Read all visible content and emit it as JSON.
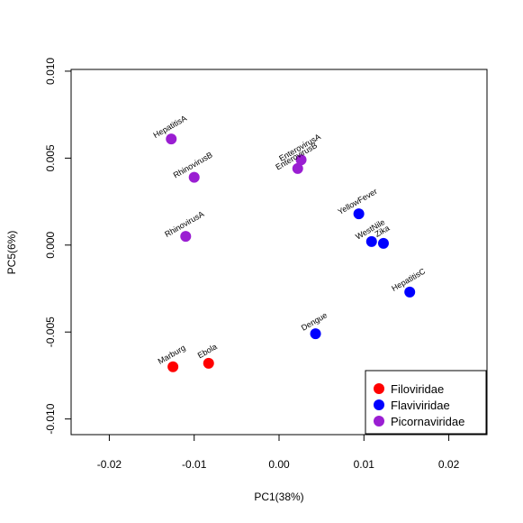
{
  "chart_data": {
    "type": "scatter",
    "xlabel": "PC1(38%)",
    "ylabel": "PC5(6%)",
    "xlim": [
      -0.0245,
      0.0245
    ],
    "ylim": [
      -0.0109,
      0.0101
    ],
    "x_ticks": [
      {
        "value": -0.02,
        "label": "-0.02"
      },
      {
        "value": -0.01,
        "label": "-0.01"
      },
      {
        "value": 0.0,
        "label": "0.00"
      },
      {
        "value": 0.01,
        "label": "0.01"
      },
      {
        "value": 0.02,
        "label": "0.02"
      }
    ],
    "y_ticks": [
      {
        "value": -0.01,
        "label": "-0.010"
      },
      {
        "value": -0.005,
        "label": "-0.005"
      },
      {
        "value": 0.0,
        "label": "0.000"
      },
      {
        "value": 0.005,
        "label": "0.005"
      },
      {
        "value": 0.01,
        "label": "0.010"
      }
    ],
    "legend": {
      "position": "bottom-right",
      "entries": [
        {
          "name": "Filoviridae",
          "color": "#ff0000"
        },
        {
          "name": "Flaviviridae",
          "color": "#0000ff"
        },
        {
          "name": "Picornaviridae",
          "color": "#9a1ed2"
        }
      ]
    },
    "series": [
      {
        "name": "Filoviridae",
        "color": "#ff0000",
        "points": [
          {
            "label": "Marburg",
            "x": -0.0125,
            "y": -0.007
          },
          {
            "label": "Ebola",
            "x": -0.0083,
            "y": -0.0068
          }
        ]
      },
      {
        "name": "Flaviviridae",
        "color": "#0000ff",
        "points": [
          {
            "label": "YellowFever",
            "x": 0.0094,
            "y": 0.0018
          },
          {
            "label": "WestNile",
            "x": 0.0109,
            "y": 0.0002
          },
          {
            "label": "Zika",
            "x": 0.0123,
            "y": 0.0001
          },
          {
            "label": "HepatitisC",
            "x": 0.0154,
            "y": -0.0027
          },
          {
            "label": "Dengue",
            "x": 0.0043,
            "y": -0.0051
          }
        ]
      },
      {
        "name": "Picornaviridae",
        "color": "#9a1ed2",
        "points": [
          {
            "label": "HepatitisA",
            "x": -0.0127,
            "y": 0.0061
          },
          {
            "label": "RhinovirusB",
            "x": -0.01,
            "y": 0.0039
          },
          {
            "label": "RhinovirusA",
            "x": -0.011,
            "y": 0.0005
          },
          {
            "label": "EnterovirusA",
            "x": 0.0026,
            "y": 0.0049
          },
          {
            "label": "EnterovirusB",
            "x": 0.0022,
            "y": 0.0044
          }
        ]
      }
    ]
  }
}
